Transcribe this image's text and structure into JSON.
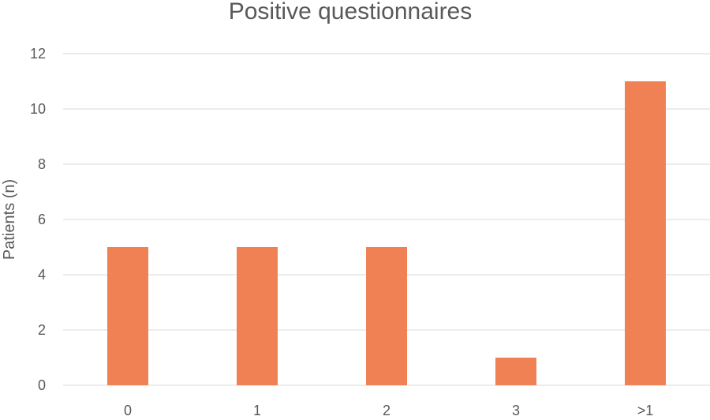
{
  "chart_data": {
    "type": "bar",
    "title": "Positive questionnaires",
    "xlabel": "",
    "ylabel": "Patients (n)",
    "categories": [
      "0",
      "1",
      "2",
      "3",
      ">1"
    ],
    "values": [
      5,
      5,
      5,
      1,
      11
    ],
    "ylim": [
      0,
      12
    ],
    "yticks": [
      0,
      2,
      4,
      6,
      8,
      10,
      12
    ],
    "grid": true,
    "legend": "none",
    "bar_color": "#f08155",
    "grid_color": "#d9d9d9",
    "text_color": "#595959"
  }
}
